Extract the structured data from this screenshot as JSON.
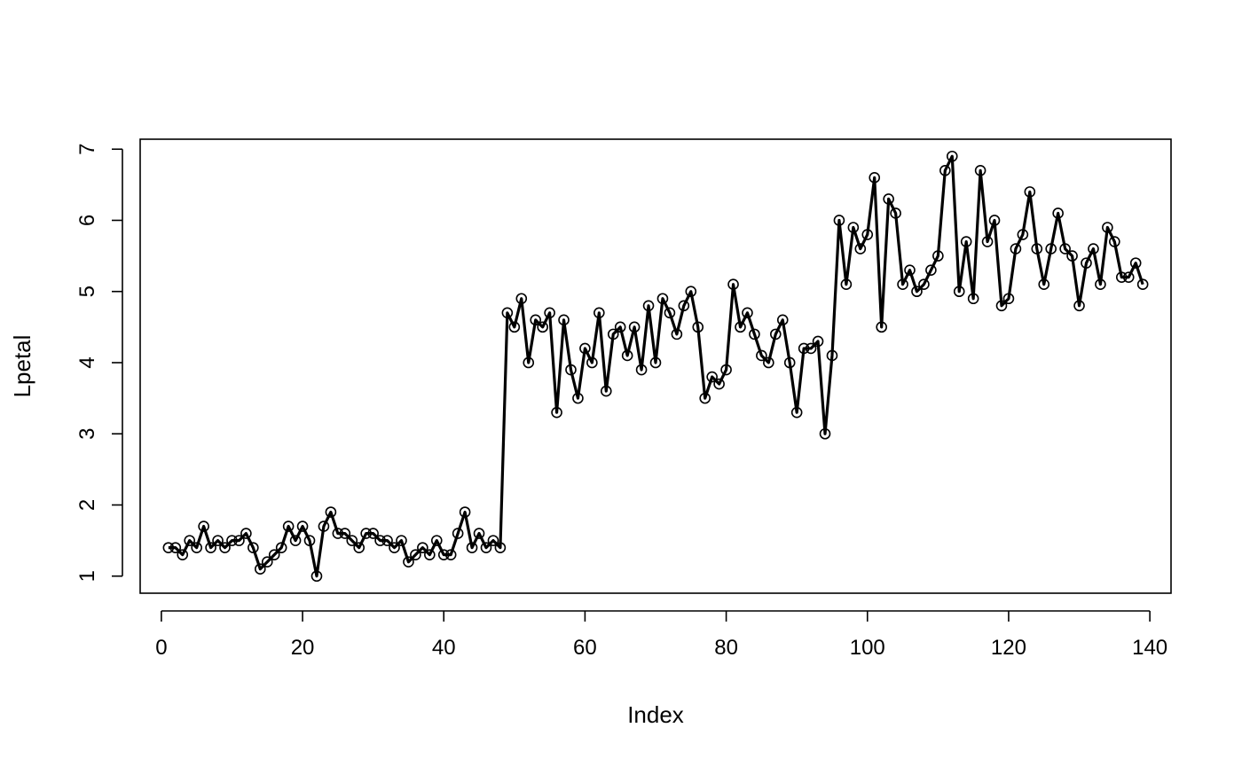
{
  "chart_data": {
    "type": "line",
    "title": "",
    "xlabel": "Index",
    "ylabel": "Lpetal",
    "xlim": [
      -3,
      143
    ],
    "ylim": [
      0.76,
      7.14
    ],
    "xticks": [
      0,
      20,
      40,
      60,
      80,
      100,
      120,
      140
    ],
    "yticks": [
      1,
      2,
      3,
      4,
      5,
      6,
      7
    ],
    "xtick_labels": [
      "0",
      "20",
      "40",
      "60",
      "80",
      "100",
      "120",
      "140"
    ],
    "ytick_labels": [
      "1",
      "2",
      "3",
      "4",
      "5",
      "6",
      "7"
    ],
    "grid": false,
    "legend": "none",
    "markers": "open circles with line overlay",
    "line_color": "#000000",
    "x": [
      1,
      2,
      3,
      4,
      5,
      6,
      7,
      8,
      9,
      10,
      11,
      12,
      13,
      14,
      15,
      16,
      17,
      18,
      19,
      20,
      21,
      22,
      23,
      24,
      25,
      26,
      27,
      28,
      29,
      30,
      31,
      32,
      33,
      34,
      35,
      36,
      37,
      38,
      39,
      40,
      41,
      42,
      43,
      44,
      45,
      46,
      47,
      48,
      49,
      50,
      51,
      52,
      53,
      54,
      55,
      56,
      57,
      58,
      59,
      60,
      61,
      62,
      63,
      64,
      65,
      66,
      67,
      68,
      69,
      70,
      71,
      72,
      73,
      74,
      75,
      76,
      77,
      78,
      79,
      80,
      81,
      82,
      83,
      84,
      85,
      86,
      87,
      88,
      89,
      90,
      91,
      92,
      93,
      94,
      95,
      96,
      97,
      98,
      99,
      100,
      101,
      102,
      103,
      104,
      105,
      106,
      107,
      108,
      109,
      110,
      111,
      112,
      113,
      114,
      115,
      116,
      117,
      118,
      119,
      120,
      121,
      122,
      123,
      124,
      125,
      126,
      127,
      128,
      129,
      130,
      131,
      132,
      133,
      134,
      135,
      136,
      137,
      138,
      139
    ],
    "y": [
      1.4,
      1.4,
      1.3,
      1.5,
      1.4,
      1.7,
      1.4,
      1.5,
      1.4,
      1.5,
      1.5,
      1.6,
      1.4,
      1.1,
      1.2,
      1.3,
      1.4,
      1.7,
      1.5,
      1.7,
      1.5,
      1.0,
      1.7,
      1.9,
      1.6,
      1.6,
      1.5,
      1.4,
      1.6,
      1.6,
      1.5,
      1.5,
      1.4,
      1.5,
      1.2,
      1.3,
      1.4,
      1.3,
      1.5,
      1.3,
      1.3,
      1.6,
      1.9,
      1.4,
      1.6,
      1.4,
      1.5,
      1.4,
      4.7,
      4.5,
      4.9,
      4.0,
      4.6,
      4.5,
      4.7,
      3.3,
      4.6,
      3.9,
      3.5,
      4.2,
      4.0,
      4.7,
      3.6,
      4.4,
      4.5,
      4.1,
      4.5,
      3.9,
      4.8,
      4.0,
      4.9,
      4.7,
      4.4,
      4.8,
      5.0,
      4.5,
      3.5,
      3.8,
      3.7,
      3.9,
      5.1,
      4.5,
      4.7,
      4.4,
      4.1,
      4.0,
      4.4,
      4.6,
      4.0,
      3.3,
      4.2,
      4.2,
      4.3,
      3.0,
      4.1,
      6.0,
      5.1,
      5.9,
      5.6,
      5.8,
      6.6,
      4.5,
      6.3,
      6.1,
      5.1,
      5.3,
      5.0,
      5.1,
      5.3,
      5.5,
      6.7,
      6.9,
      5.0,
      5.7,
      4.9,
      6.7,
      5.7,
      6.0,
      4.8,
      4.9,
      5.6,
      5.8,
      6.4,
      5.6,
      5.1,
      5.6,
      6.1,
      5.6,
      5.5,
      4.8,
      5.4,
      5.6,
      5.1,
      5.9,
      5.7,
      5.2,
      5.2,
      5.4,
      5.1
    ]
  }
}
